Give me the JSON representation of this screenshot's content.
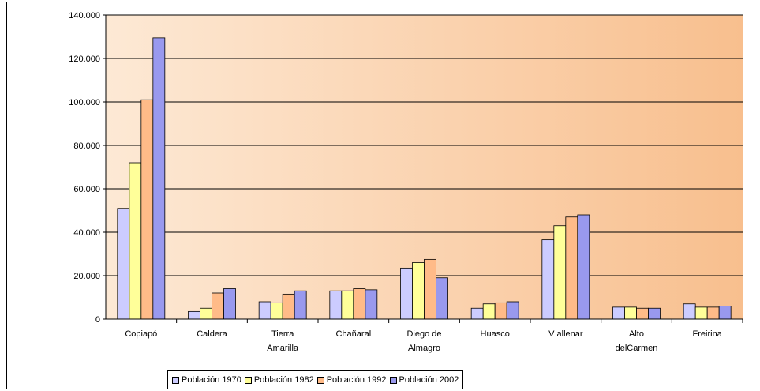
{
  "chart_data": {
    "type": "bar",
    "categories": [
      [
        "Copiapó"
      ],
      [
        "Caldera"
      ],
      [
        "Tierra",
        "Amarilla"
      ],
      [
        "Chañaral"
      ],
      [
        "Diego de",
        "Almagro"
      ],
      [
        "Huasco"
      ],
      [
        "V allenar"
      ],
      [
        "Alto",
        "delCarmen"
      ],
      [
        "Freirina"
      ]
    ],
    "series": [
      {
        "name": "Población 1970",
        "color": "#ccccff",
        "values": [
          51000,
          3500,
          8000,
          13000,
          23500,
          5000,
          36500,
          5500,
          7000
        ]
      },
      {
        "name": "Población 1982",
        "color": "#ffff99",
        "values": [
          72000,
          5000,
          7500,
          13000,
          26000,
          7000,
          43000,
          5500,
          5500
        ]
      },
      {
        "name": "Población 1992",
        "color": "#ffbb88",
        "values": [
          101000,
          12000,
          11500,
          14000,
          27500,
          7500,
          47000,
          5000,
          5500
        ]
      },
      {
        "name": "Población 2002",
        "color": "#9999ee",
        "values": [
          129500,
          14000,
          13000,
          13500,
          19000,
          8000,
          48000,
          5000,
          6000
        ]
      }
    ],
    "ylim": [
      0,
      140000
    ],
    "yticks": [
      "0",
      "20.000",
      "40.000",
      "60.000",
      "80.000",
      "100.000",
      "120.000",
      "140.000"
    ],
    "ytick_values": [
      0,
      20000,
      40000,
      60000,
      80000,
      100000,
      120000,
      140000
    ],
    "grid": true,
    "legend_position": "bottom",
    "plot_background": [
      "#fde9d5",
      "#f8bf8e"
    ],
    "title": "",
    "xlabel": "",
    "ylabel": ""
  }
}
